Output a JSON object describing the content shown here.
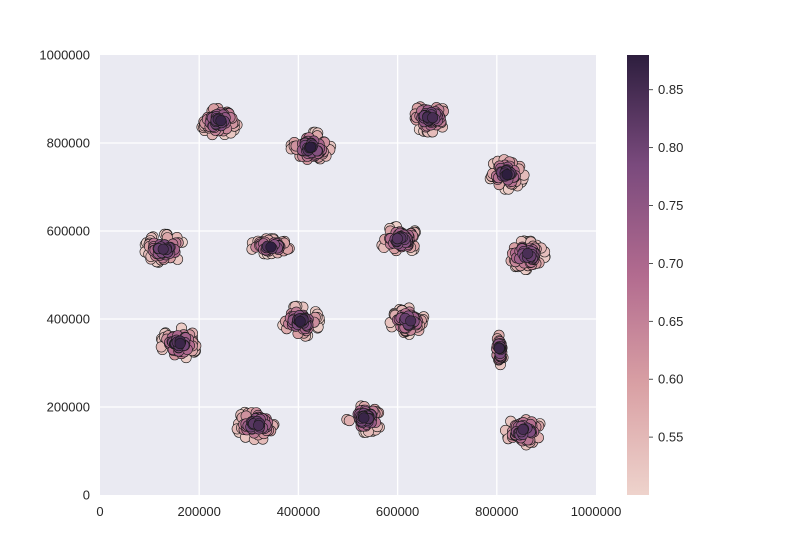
{
  "chart_data": {
    "type": "scatter",
    "title": "",
    "xlabel": "",
    "ylabel": "",
    "xlim": [
      0,
      1000000
    ],
    "ylim": [
      0,
      1000000
    ],
    "x_ticks": [
      0,
      200000,
      400000,
      600000,
      800000,
      1000000
    ],
    "y_ticks": [
      0,
      200000,
      400000,
      600000,
      800000,
      1000000
    ],
    "x_tick_labels": [
      "0",
      "200000",
      "400000",
      "600000",
      "800000",
      "1000000"
    ],
    "y_tick_labels": [
      "0",
      "200000",
      "400000",
      "600000",
      "800000",
      "1000000"
    ],
    "grid": true,
    "background": "#eaeaf2",
    "colorbar": {
      "range": [
        0.5,
        0.88
      ],
      "ticks": [
        0.55,
        0.6,
        0.65,
        0.7,
        0.75,
        0.8,
        0.85
      ],
      "tick_labels": [
        "0.55",
        "0.60",
        "0.65",
        "0.70",
        "0.75",
        "0.80",
        "0.85"
      ],
      "color_low": "#eed3cc",
      "color_high": "#2d1e3e"
    },
    "clusters": [
      {
        "center": [
          240000,
          850000
        ],
        "spread": [
          30000,
          28000
        ],
        "count": 60
      },
      {
        "center": [
          425000,
          790000
        ],
        "spread": [
          32000,
          28000
        ],
        "count": 60
      },
      {
        "center": [
          665000,
          860000
        ],
        "spread": [
          30000,
          28000
        ],
        "count": 60
      },
      {
        "center": [
          820000,
          730000
        ],
        "spread": [
          28000,
          28000
        ],
        "count": 55
      },
      {
        "center": [
          130000,
          560000
        ],
        "spread": [
          32000,
          26000
        ],
        "count": 60
      },
      {
        "center": [
          345000,
          565000
        ],
        "spread": [
          34000,
          14000
        ],
        "count": 50
      },
      {
        "center": [
          605000,
          580000
        ],
        "spread": [
          32000,
          24000
        ],
        "count": 60
      },
      {
        "center": [
          860000,
          545000
        ],
        "spread": [
          30000,
          26000
        ],
        "count": 60
      },
      {
        "center": [
          160000,
          345000
        ],
        "spread": [
          30000,
          28000
        ],
        "count": 60
      },
      {
        "center": [
          405000,
          395000
        ],
        "spread": [
          30000,
          28000
        ],
        "count": 60
      },
      {
        "center": [
          620000,
          395000
        ],
        "spread": [
          28000,
          24000
        ],
        "count": 55
      },
      {
        "center": [
          805000,
          330000
        ],
        "spread": [
          7000,
          28000
        ],
        "count": 35
      },
      {
        "center": [
          315000,
          160000
        ],
        "spread": [
          32000,
          28000
        ],
        "count": 60
      },
      {
        "center": [
          535000,
          175000
        ],
        "spread": [
          30000,
          26000
        ],
        "count": 60
      },
      {
        "center": [
          855000,
          145000
        ],
        "spread": [
          30000,
          26000
        ],
        "count": 55
      }
    ]
  }
}
